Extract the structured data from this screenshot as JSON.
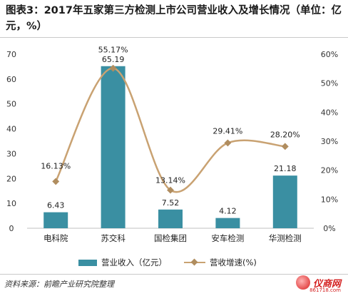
{
  "title": "图表3：2017年五家第三方检测上市公司营业收入及增长情况（单位：亿元，%）",
  "chart_data": {
    "type": "bar",
    "categories": [
      "电科院",
      "苏交科",
      "国检集团",
      "安车检测",
      "华测检测"
    ],
    "series": [
      {
        "name": "营业收入（亿元）",
        "type": "bar",
        "axis": "left",
        "values": [
          6.43,
          65.19,
          7.52,
          4.12,
          21.18
        ],
        "labels": [
          "6.43",
          "65.19",
          "7.52",
          "4.12",
          "21.18"
        ]
      },
      {
        "name": "营收增速(%)",
        "type": "line",
        "axis": "right",
        "values": [
          16.13,
          55.17,
          13.14,
          29.41,
          28.2
        ],
        "labels": [
          "16.13%",
          "55.17%",
          "13.14%",
          "29.41%",
          "28.20%"
        ]
      }
    ],
    "y_left": {
      "range": [
        0,
        70
      ],
      "ticks": [
        "0",
        "10",
        "20",
        "30",
        "40",
        "50",
        "60",
        "70"
      ]
    },
    "y_right": {
      "range": [
        0,
        60
      ],
      "ticks": [
        "0%",
        "10%",
        "20%",
        "30%",
        "40%",
        "50%",
        "60%"
      ]
    },
    "legend_position": "bottom",
    "grid": false,
    "colors": {
      "bar": "#3a8fa2",
      "line": "#c9a272",
      "marker": "#b08d5f"
    }
  },
  "source": "资料来源：前瞻产业研究院整理",
  "logo": {
    "name": "仪商网",
    "url": "861718.com"
  }
}
